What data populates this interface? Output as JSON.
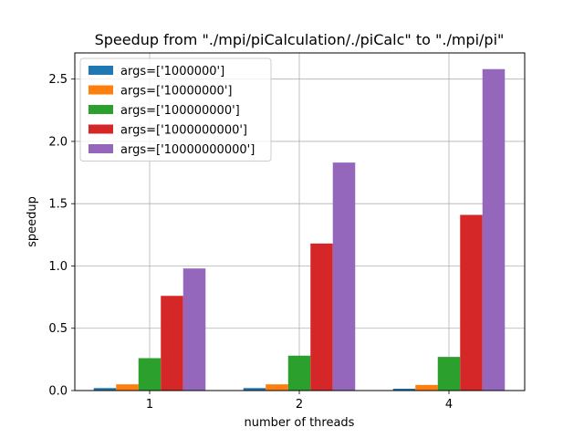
{
  "chart_data": {
    "type": "bar",
    "title": "Speedup from \"./mpi/piCalculation/./piCalc\" to \"./mpi/pi\"",
    "xlabel": "number of threads",
    "ylabel": "speedup",
    "categories": [
      "1",
      "2",
      "4"
    ],
    "ylim": [
      0,
      2.71
    ],
    "yticks": [
      "0.0",
      "0.5",
      "1.0",
      "1.5",
      "2.0",
      "2.5"
    ],
    "grid": true,
    "legend_position": "top-left",
    "series": [
      {
        "name": "args=['1000000']",
        "color": "#1f77b4",
        "values": [
          0.02,
          0.02,
          0.015
        ]
      },
      {
        "name": "args=['10000000']",
        "color": "#ff7f0e",
        "values": [
          0.05,
          0.05,
          0.045
        ]
      },
      {
        "name": "args=['100000000']",
        "color": "#2ca02c",
        "values": [
          0.26,
          0.28,
          0.27
        ]
      },
      {
        "name": "args=['1000000000']",
        "color": "#d62728",
        "values": [
          0.76,
          1.18,
          1.41
        ]
      },
      {
        "name": "args=['10000000000']",
        "color": "#9467bd",
        "values": [
          0.98,
          1.83,
          2.58
        ]
      }
    ]
  }
}
